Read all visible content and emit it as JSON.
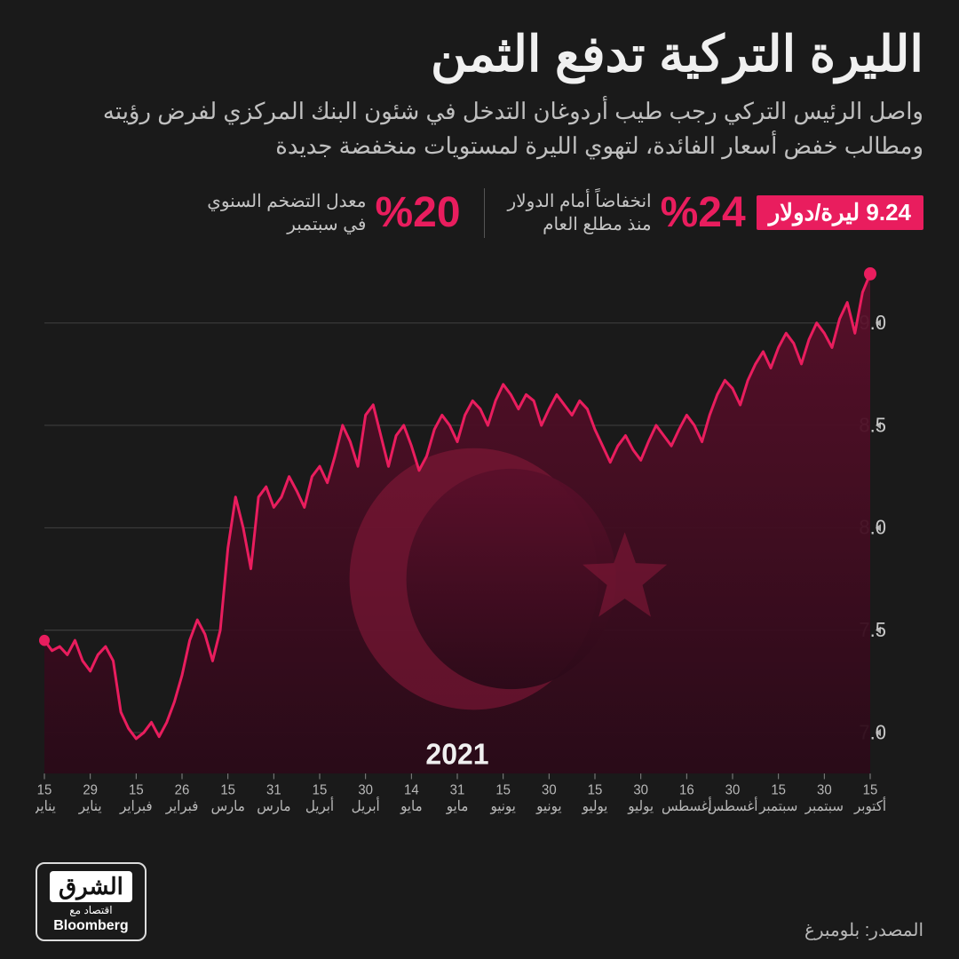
{
  "title": "الليرة التركية تدفع الثمن",
  "subtitle": "واصل الرئيس التركي رجب طيب أردوغان التدخل في شئون البنك المركزي لفرض رؤيته ومطالب خفض أسعار الفائدة، لتهوي الليرة لمستويات منخفضة جديدة",
  "rate_badge": "9.24 ليرة/دولار",
  "stat1_num": "%24",
  "stat1_txt_l1": "انخفاضاً أمام الدولار",
  "stat1_txt_l2": "منذ مطلع العام",
  "stat2_num": "%20",
  "stat2_txt_l1": "معدل التضخم السنوي",
  "stat2_txt_l2": "في سبتمبر",
  "source": "المصدر: بلومبرغ",
  "logo_main": "الشرق",
  "logo_sub": "اقتصاد مع",
  "logo_bb": "Bloomberg",
  "chart": {
    "type": "area-line",
    "ylim": [
      6.8,
      9.3
    ],
    "yticks": [
      7.0,
      7.5,
      8.0,
      8.5,
      9.0
    ],
    "year_label": "2021",
    "line_color": "#e91d5e",
    "line_width": 3,
    "area_top_color": "#5a0f2a",
    "area_bottom_color": "#2a0a18",
    "grid_color": "#404040",
    "bg_color": "#1a1a1a",
    "point_start_color": "#e91d5e",
    "point_end_color": "#e91d5e",
    "flag_crescent_color": "#8a1a3a",
    "xticks": [
      {
        "d": "15",
        "m": "يناير"
      },
      {
        "d": "29",
        "m": "يناير"
      },
      {
        "d": "15",
        "m": "فبراير"
      },
      {
        "d": "26",
        "m": "فبراير"
      },
      {
        "d": "15",
        "m": "مارس"
      },
      {
        "d": "31",
        "m": "مارس"
      },
      {
        "d": "15",
        "m": "أبريل"
      },
      {
        "d": "30",
        "m": "أبريل"
      },
      {
        "d": "14",
        "m": "مايو"
      },
      {
        "d": "31",
        "m": "مايو"
      },
      {
        "d": "15",
        "m": "يونيو"
      },
      {
        "d": "30",
        "m": "يونيو"
      },
      {
        "d": "15",
        "m": "يوليو"
      },
      {
        "d": "30",
        "m": "يوليو"
      },
      {
        "d": "16",
        "m": "أغسطس"
      },
      {
        "d": "30",
        "m": "أغسطس"
      },
      {
        "d": "15",
        "m": "سبتمبر"
      },
      {
        "d": "30",
        "m": "سبتمبر"
      },
      {
        "d": "15",
        "m": "أكتوبر"
      }
    ],
    "series": [
      7.45,
      7.4,
      7.42,
      7.38,
      7.45,
      7.35,
      7.3,
      7.38,
      7.42,
      7.35,
      7.1,
      7.02,
      6.97,
      7.0,
      7.05,
      6.98,
      7.05,
      7.15,
      7.28,
      7.45,
      7.55,
      7.48,
      7.35,
      7.5,
      7.9,
      8.15,
      8.0,
      7.8,
      8.15,
      8.2,
      8.1,
      8.15,
      8.25,
      8.18,
      8.1,
      8.25,
      8.3,
      8.22,
      8.35,
      8.5,
      8.42,
      8.3,
      8.55,
      8.6,
      8.45,
      8.3,
      8.45,
      8.5,
      8.4,
      8.28,
      8.35,
      8.48,
      8.55,
      8.5,
      8.42,
      8.55,
      8.62,
      8.58,
      8.5,
      8.62,
      8.7,
      8.65,
      8.58,
      8.65,
      8.62,
      8.5,
      8.58,
      8.65,
      8.6,
      8.55,
      8.62,
      8.58,
      8.48,
      8.4,
      8.32,
      8.4,
      8.45,
      8.38,
      8.33,
      8.42,
      8.5,
      8.45,
      8.4,
      8.48,
      8.55,
      8.5,
      8.42,
      8.55,
      8.65,
      8.72,
      8.68,
      8.6,
      8.72,
      8.8,
      8.86,
      8.78,
      8.88,
      8.95,
      8.9,
      8.8,
      8.92,
      9.0,
      8.95,
      8.88,
      9.02,
      9.1,
      8.95,
      9.15,
      9.24
    ]
  }
}
